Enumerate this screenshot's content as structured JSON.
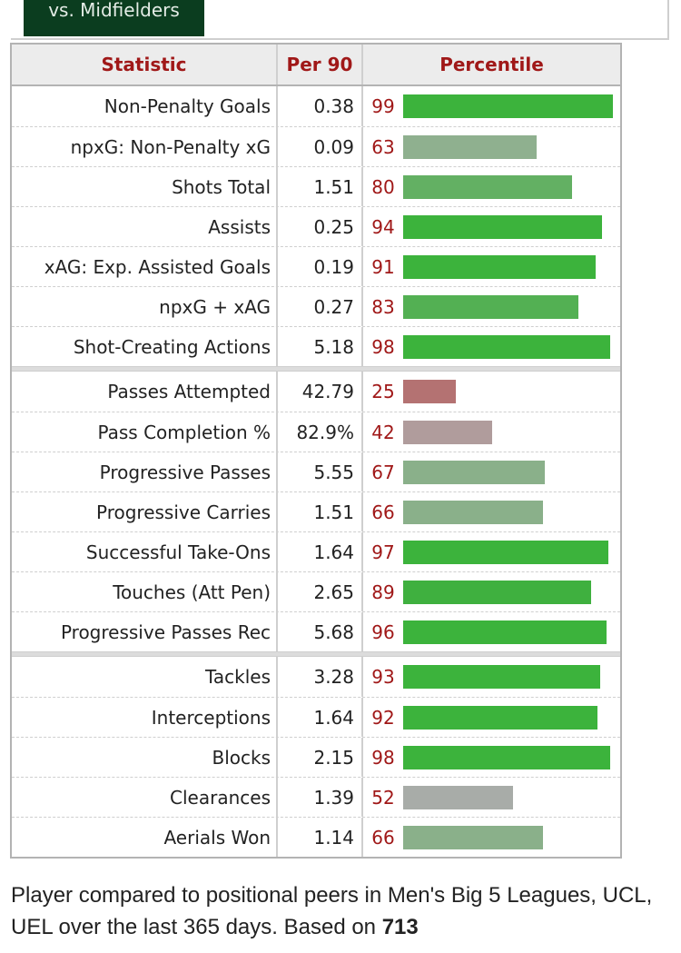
{
  "tab": {
    "label": "vs. Midfielders"
  },
  "table": {
    "headers": {
      "statistic": "Statistic",
      "per90": "Per 90",
      "percentile": "Percentile"
    },
    "groups": [
      [
        {
          "stat": "Non-Penalty Goals",
          "per90": "0.38",
          "pct": 99,
          "color": "#3cb33c"
        },
        {
          "stat": "npxG: Non-Penalty xG",
          "per90": "0.09",
          "pct": 63,
          "color": "#8fb08f"
        },
        {
          "stat": "Shots Total",
          "per90": "1.51",
          "pct": 80,
          "color": "#63b063"
        },
        {
          "stat": "Assists",
          "per90": "0.25",
          "pct": 94,
          "color": "#3cb33c"
        },
        {
          "stat": "xAG: Exp. Assisted Goals",
          "per90": "0.19",
          "pct": 91,
          "color": "#3cb33c"
        },
        {
          "stat": "npxG + xAG",
          "per90": "0.27",
          "pct": 83,
          "color": "#53b053"
        },
        {
          "stat": "Shot-Creating Actions",
          "per90": "5.18",
          "pct": 98,
          "color": "#3cb33c"
        }
      ],
      [
        {
          "stat": "Passes Attempted",
          "per90": "42.79",
          "pct": 25,
          "color": "#b47272"
        },
        {
          "stat": "Pass Completion %",
          "per90": "82.9%",
          "pct": 42,
          "color": "#b09c9c"
        },
        {
          "stat": "Progressive Passes",
          "per90": "5.55",
          "pct": 67,
          "color": "#8ab08a"
        },
        {
          "stat": "Progressive Carries",
          "per90": "1.51",
          "pct": 66,
          "color": "#8ab08a"
        },
        {
          "stat": "Successful Take-Ons",
          "per90": "1.64",
          "pct": 97,
          "color": "#3cb33c"
        },
        {
          "stat": "Touches (Att Pen)",
          "per90": "2.65",
          "pct": 89,
          "color": "#3fb03f"
        },
        {
          "stat": "Progressive Passes Rec",
          "per90": "5.68",
          "pct": 96,
          "color": "#3cb33c"
        }
      ],
      [
        {
          "stat": "Tackles",
          "per90": "3.28",
          "pct": 93,
          "color": "#3cb33c"
        },
        {
          "stat": "Interceptions",
          "per90": "1.64",
          "pct": 92,
          "color": "#3cb33c"
        },
        {
          "stat": "Blocks",
          "per90": "2.15",
          "pct": 98,
          "color": "#3cb33c"
        },
        {
          "stat": "Clearances",
          "per90": "1.39",
          "pct": 52,
          "color": "#a8aca8"
        },
        {
          "stat": "Aerials Won",
          "per90": "1.14",
          "pct": 66,
          "color": "#8ab08a"
        }
      ]
    ]
  },
  "footer": {
    "text_before": "Player compared to positional peers in Men's Big 5 Leagues, UCL, UEL over the last 365 days. Based on ",
    "count": "713"
  }
}
